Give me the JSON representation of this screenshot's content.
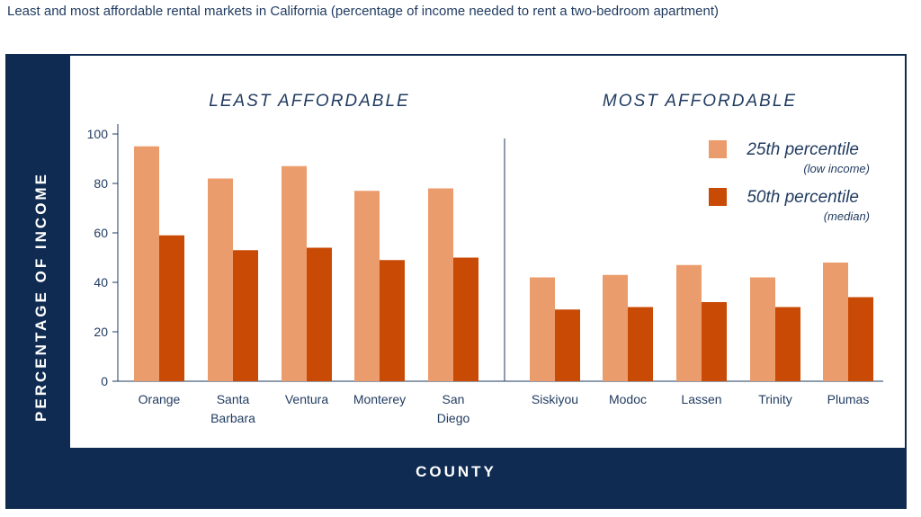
{
  "title": "Least and most affordable rental markets in California (percentage of income needed to rent a two-bedroom apartment)",
  "chart_data": {
    "type": "bar",
    "title": "Least and most affordable rental markets in California (percentage of income needed to rent a two-bedroom apartment)",
    "xlabel": "COUNTY",
    "ylabel": "PERCENTAGE OF INCOME",
    "ylim": [
      0,
      100
    ],
    "yticks": [
      "0",
      "20",
      "40",
      "60",
      "80",
      "100"
    ],
    "grid": false,
    "legend_position": "top-right",
    "colors": {
      "p25": "#eb9c6c",
      "p50": "#c94a05",
      "text": "#1f3a5f",
      "frame": "#0f2b52"
    },
    "groups": [
      {
        "title": "LEAST AFFORDABLE",
        "categories": [
          [
            "Orange"
          ],
          [
            "Santa",
            "Barbara"
          ],
          [
            "Ventura"
          ],
          [
            "Monterey"
          ],
          [
            "San",
            "Diego"
          ]
        ],
        "series": [
          {
            "name": "25th percentile",
            "values": [
              95,
              82,
              87,
              77,
              78
            ]
          },
          {
            "name": "50th percentile",
            "values": [
              59,
              53,
              54,
              49,
              50
            ]
          }
        ]
      },
      {
        "title": "MOST AFFORDABLE",
        "categories": [
          [
            "Siskiyou"
          ],
          [
            "Modoc"
          ],
          [
            "Lassen"
          ],
          [
            "Trinity"
          ],
          [
            "Plumas"
          ]
        ],
        "series": [
          {
            "name": "25th percentile",
            "values": [
              42,
              43,
              47,
              42,
              48
            ]
          },
          {
            "name": "50th percentile",
            "values": [
              29,
              30,
              32,
              30,
              34
            ]
          }
        ]
      }
    ],
    "legend": [
      {
        "name": "25th percentile",
        "note": "(low income)"
      },
      {
        "name": "50th percentile",
        "note": "(median)"
      }
    ]
  }
}
